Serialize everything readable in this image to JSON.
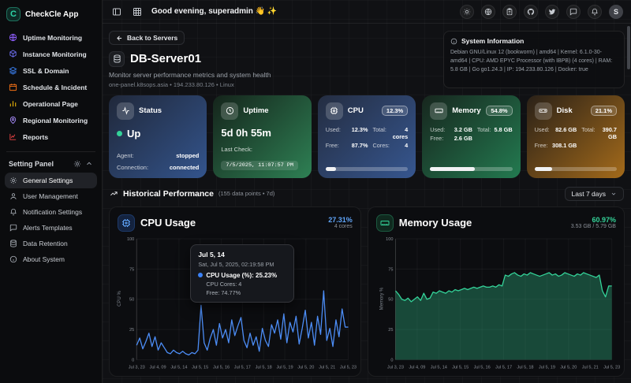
{
  "app": {
    "name": "CheckCle App"
  },
  "topbar": {
    "greeting": "Good evening, superadmin 👋 ✨",
    "avatar_initial": "S"
  },
  "sidebar": {
    "items": [
      {
        "label": "Uptime Monitoring"
      },
      {
        "label": "Instance Monitoring"
      },
      {
        "label": "SSL & Domain"
      },
      {
        "label": "Schedule & Incident"
      },
      {
        "label": "Operational Page"
      },
      {
        "label": "Regional Monitoring"
      },
      {
        "label": "Reports"
      }
    ],
    "settings_label": "Setting Panel",
    "settings_items": [
      {
        "label": "General Settings"
      },
      {
        "label": "User Management"
      },
      {
        "label": "Notification Settings"
      },
      {
        "label": "Alerts Templates"
      },
      {
        "label": "Data Retention"
      },
      {
        "label": "About System"
      }
    ]
  },
  "header": {
    "back_label": "Back to Servers",
    "title": "DB-Server01",
    "subtitle": "Monitor server performance metrics and system health",
    "meta": "one-panel.k8sops.asia • 194.233.80.126 • Linux"
  },
  "system_info": {
    "title": "System Information",
    "details": "Debian GNU/Linux 12 (bookworm) | amd64 | Kernel: 6.1.0-30-amd64 | CPU: AMD EPYC Processor (with IBPB) (4 cores) | RAM: 5.8 GB | Go go1.24.3 | IP: 194.233.80.126 | Docker: true"
  },
  "cards": {
    "status": {
      "title": "Status",
      "state": "Up",
      "agent_label": "Agent:",
      "agent": "stopped",
      "connection_label": "Connection:",
      "connection": "connected"
    },
    "uptime": {
      "title": "Uptime",
      "duration": "5d 0h 55m",
      "last_check_label": "Last Check:",
      "last_check": "7/5/2025, 11:07:57 PM"
    },
    "cpu": {
      "title": "CPU",
      "badge": "12.3%",
      "used_label": "Used:",
      "used": "12.3%",
      "total_label": "Total:",
      "total": "4 cores",
      "free_label": "Free:",
      "free": "87.7%",
      "cores_label": "Cores:",
      "cores": "4",
      "percent": 12.3
    },
    "memory": {
      "title": "Memory",
      "badge": "54.8%",
      "used_label": "Used:",
      "used": "3.2 GB",
      "total_label": "Total:",
      "total": "5.8 GB",
      "free_label": "Free:",
      "free": "2.6 GB",
      "percent": 54.8
    },
    "disk": {
      "title": "Disk",
      "badge": "21.1%",
      "used_label": "Used:",
      "used": "82.6 GB",
      "total_label": "Total:",
      "total": "390.7 GB",
      "free_label": "Free:",
      "free": "308.1 GB",
      "percent": 21.1
    }
  },
  "section": {
    "title": "Historical Performance",
    "meta": "(155 data points • 7d)",
    "range": "Last 7 days"
  },
  "chart_data": [
    {
      "type": "line",
      "title": "CPU Usage",
      "current_value": "27.31%",
      "subtitle": "4 cores",
      "ylabel": "CPU %",
      "ylim": [
        0,
        100
      ],
      "yticks": [
        0,
        25,
        50,
        75,
        100
      ],
      "grid": true,
      "color": "#4c8df6",
      "x_labels": [
        "Jul 3, 23",
        "Jul 4, 09",
        "Jul 5, 14",
        "Jul 5, 15",
        "Jul 5, 16",
        "Jul 5, 17",
        "Jul 5, 18",
        "Jul 5, 19",
        "Jul 5, 20",
        "Jul 5, 21",
        "Jul 5, 23"
      ],
      "values": [
        12,
        18,
        9,
        15,
        22,
        11,
        19,
        8,
        14,
        10,
        6,
        5,
        8,
        6,
        5,
        7,
        5,
        4,
        6,
        5,
        8,
        45,
        14,
        8,
        18,
        25,
        12,
        30,
        18,
        25,
        14,
        33,
        20,
        28,
        35,
        16,
        10,
        22,
        12,
        19,
        7,
        26,
        16,
        11,
        29,
        22,
        33,
        17,
        38,
        14,
        31,
        23,
        36,
        13,
        26,
        41,
        18,
        31,
        12,
        36,
        21,
        57,
        16,
        26,
        11,
        33,
        19,
        42,
        27,
        27
      ],
      "tooltip": {
        "title": "Jul 5, 14",
        "date": "Sat, Jul 5, 2025, 02:19:58 PM",
        "main": "CPU Usage (%): 25.23%",
        "lines": [
          "CPU Cores: 4",
          "Free: 74.77%"
        ]
      }
    },
    {
      "type": "area",
      "title": "Memory Usage",
      "current_value": "60.97%",
      "subtitle": "3.53 GB / 5.79 GB",
      "ylabel": "Memory %",
      "ylim": [
        0,
        100
      ],
      "yticks": [
        0,
        25,
        50,
        75,
        100
      ],
      "grid": true,
      "color": "#34d399",
      "x_labels": [
        "Jul 3, 23",
        "Jul 4, 09",
        "Jul 5, 14",
        "Jul 5, 15",
        "Jul 5, 16",
        "Jul 5, 17",
        "Jul 5, 18",
        "Jul 5, 19",
        "Jul 5, 20",
        "Jul 5, 21",
        "Jul 5, 23"
      ],
      "values": [
        57,
        54,
        50,
        49,
        51,
        48,
        50,
        52,
        49,
        55,
        50,
        51,
        56,
        55,
        57,
        56,
        55,
        57,
        56,
        58,
        57,
        58,
        59,
        58,
        59,
        60,
        59,
        60,
        61,
        60,
        60,
        61,
        60,
        62,
        61,
        70,
        69,
        71,
        72,
        70,
        69,
        71,
        70,
        72,
        71,
        70,
        69,
        70,
        71,
        72,
        70,
        71,
        69,
        70,
        72,
        71,
        70,
        69,
        71,
        70,
        72,
        71,
        70,
        69,
        68,
        70,
        57,
        52,
        61,
        61
      ]
    }
  ]
}
